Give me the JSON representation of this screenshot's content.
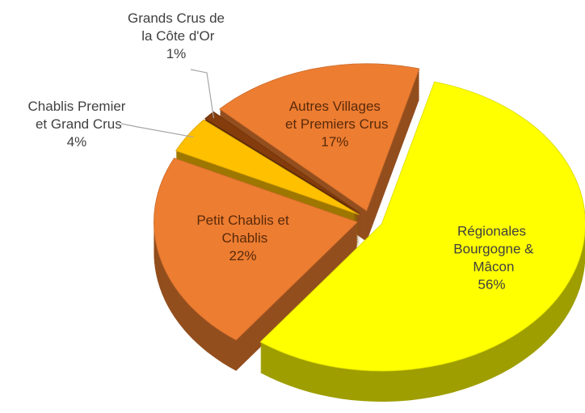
{
  "chart_data": {
    "type": "pie",
    "categories": [
      "Régionales Bourgogne & Mâcon",
      "Petit Chablis et Chablis",
      "Chablis Premier et Grand Crus",
      "Grands Crus de la Côte d'Or",
      "Autres Villages et Premiers Crus"
    ],
    "values": [
      56,
      22,
      4,
      1,
      17
    ],
    "value_labels": [
      "56%",
      "22%",
      "4%",
      "1%",
      "17%"
    ],
    "colors": [
      "#ffff00",
      "#ed7d31",
      "#ffc000",
      "#843c0c",
      "#ed7d31"
    ]
  }
}
